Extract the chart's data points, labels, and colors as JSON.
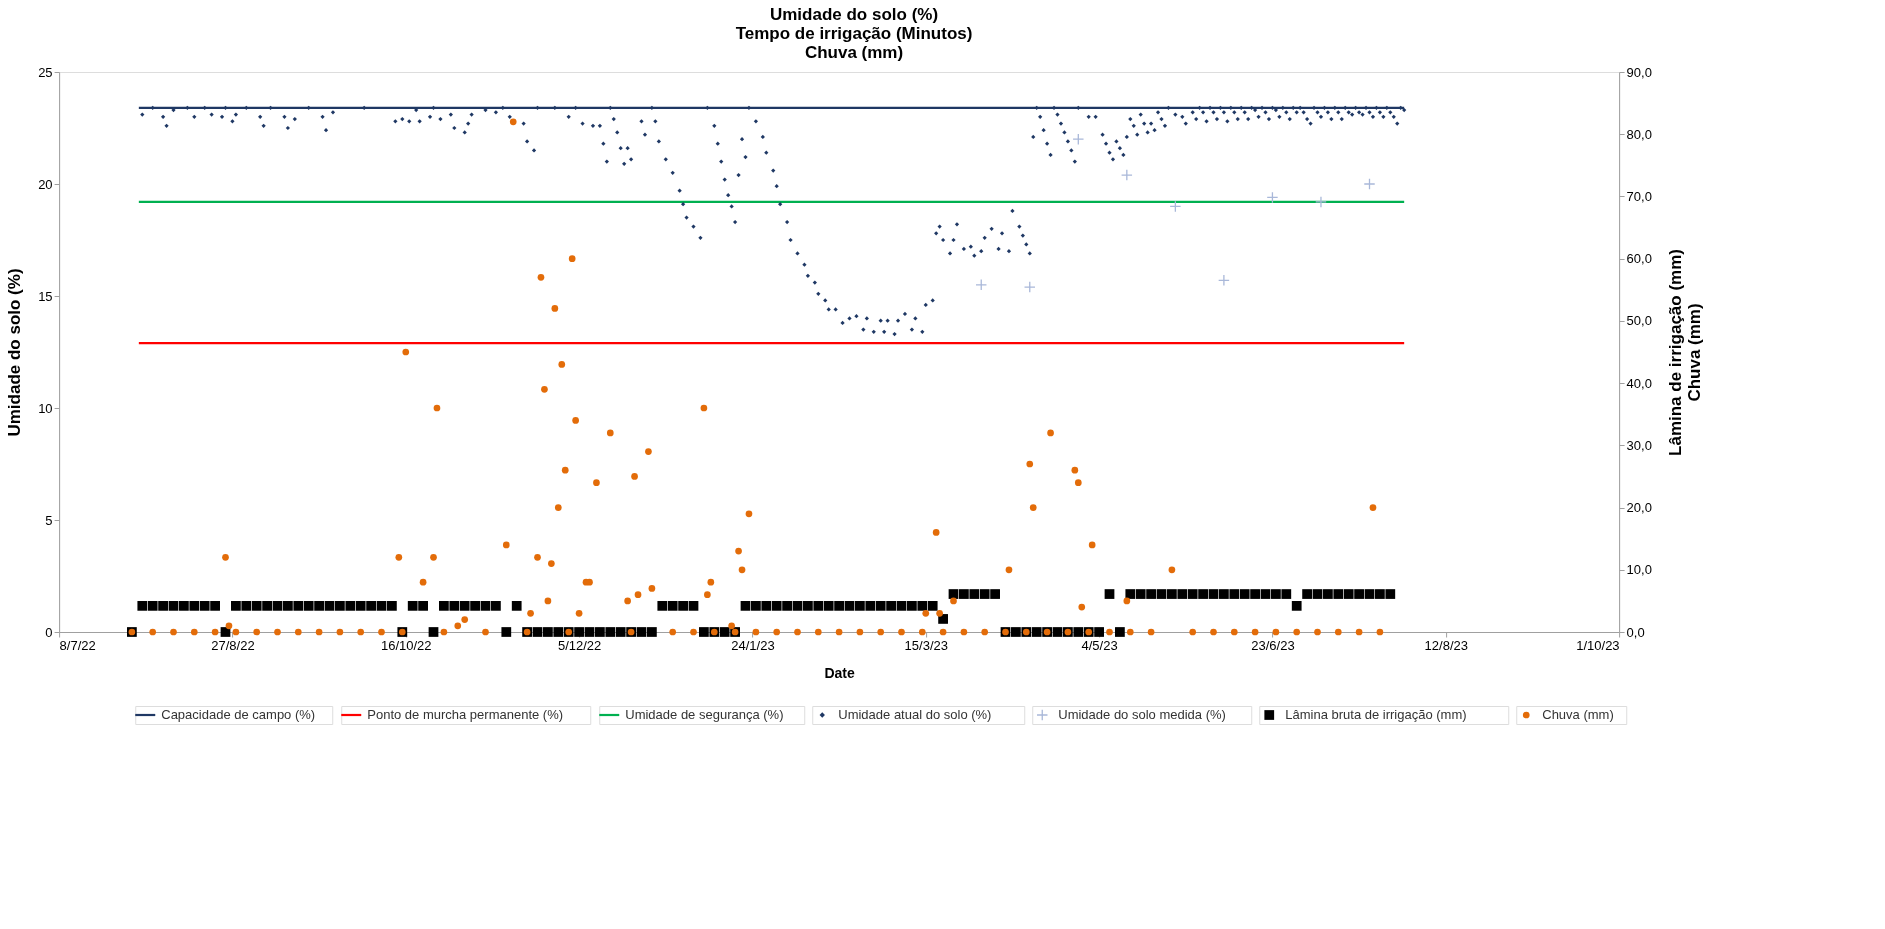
{
  "chart_data": {
    "type": "scatter",
    "title": "Umidade do solo (%)\nTempo de irrigação (Minutos)\nChuva (mm)",
    "xlabel": "Date",
    "ylabel": "Umidade do solo (%)",
    "y2label": "Lâmina de irrigação (mm)\nChuva (mm)",
    "xlim": [
      "2022-07-08",
      "2023-10-01"
    ],
    "xticks": [
      {
        "value": "2022-07-08",
        "label": "8/7/22"
      },
      {
        "value": "2022-08-27",
        "label": "27/8/22"
      },
      {
        "value": "2022-10-16",
        "label": "16/10/22"
      },
      {
        "value": "2022-12-05",
        "label": "5/12/22"
      },
      {
        "value": "2023-01-24",
        "label": "24/1/23"
      },
      {
        "value": "2023-03-15",
        "label": "15/3/23"
      },
      {
        "value": "2023-05-04",
        "label": "4/5/23"
      },
      {
        "value": "2023-06-23",
        "label": "23/6/23"
      },
      {
        "value": "2023-08-12",
        "label": "12/8/23"
      },
      {
        "value": "2023-10-01",
        "label": "1/10/23"
      }
    ],
    "ylim": [
      0,
      25
    ],
    "yticks": [
      0,
      5,
      10,
      15,
      20,
      25
    ],
    "y2lim": [
      0,
      90
    ],
    "y2ticks": [
      {
        "value": 0,
        "label": "0,0"
      },
      {
        "value": 10,
        "label": "10,0"
      },
      {
        "value": 20,
        "label": "20,0"
      },
      {
        "value": 30,
        "label": "30,0"
      },
      {
        "value": 40,
        "label": "40,0"
      },
      {
        "value": 50,
        "label": "50,0"
      },
      {
        "value": 60,
        "label": "60,0"
      },
      {
        "value": 70,
        "label": "70,0"
      },
      {
        "value": 80,
        "label": "80,0"
      },
      {
        "value": 90,
        "label": "90,0"
      }
    ],
    "legend": "bottom",
    "series": [
      {
        "name": "Capacidade de campo (%)",
        "type": "line",
        "marker": "none",
        "color": "#1f3864",
        "x": [
          "2022-07-31",
          "2023-07-31"
        ],
        "values": [
          23.4,
          23.4
        ]
      },
      {
        "name": "Ponto de murcha permanente (%)",
        "type": "line",
        "marker": "none",
        "color": "#ff0000",
        "x": [
          "2022-07-31",
          "2023-07-31"
        ],
        "values": [
          12.9,
          12.9
        ]
      },
      {
        "name": "Umidade de segurança (%)",
        "type": "line",
        "marker": "none",
        "color": "#00b050",
        "x": [
          "2022-07-31",
          "2023-07-31"
        ],
        "values": [
          19.2,
          19.2
        ]
      },
      {
        "name": "Umidade atual do solo (%)",
        "marker": "diamond",
        "color": "#1f3864",
        "x": [
          "2022-08-01",
          "2022-08-04",
          "2022-08-07",
          "2022-08-08",
          "2022-08-10",
          "2022-08-14",
          "2022-08-16",
          "2022-08-19",
          "2022-08-21",
          "2022-08-24",
          "2022-08-25",
          "2022-08-27",
          "2022-08-28",
          "2022-08-31",
          "2022-09-04",
          "2022-09-05",
          "2022-09-07",
          "2022-09-11",
          "2022-09-12",
          "2022-09-14",
          "2022-09-18",
          "2022-09-22",
          "2022-09-23",
          "2022-09-25",
          "2022-10-04",
          "2022-10-13",
          "2022-10-15",
          "2022-10-17",
          "2022-10-19",
          "2022-10-20",
          "2022-10-23",
          "2022-10-24",
          "2022-10-26",
          "2022-10-29",
          "2022-10-30",
          "2022-11-02",
          "2022-11-03",
          "2022-11-04",
          "2022-11-08",
          "2022-11-11",
          "2022-11-13",
          "2022-11-15",
          "2022-11-19",
          "2022-11-20",
          "2022-11-22",
          "2022-11-23",
          "2022-11-28",
          "2022-12-02",
          "2022-12-04",
          "2022-12-06",
          "2022-12-09",
          "2022-12-11",
          "2022-12-12",
          "2022-12-13",
          "2022-12-14",
          "2022-12-15",
          "2022-12-16",
          "2022-12-17",
          "2022-12-18",
          "2022-12-19",
          "2022-12-20",
          "2022-12-23",
          "2022-12-24",
          "2022-12-26",
          "2022-12-27",
          "2022-12-28",
          "2022-12-30",
          "2023-01-01",
          "2023-01-03",
          "2023-01-04",
          "2023-01-05",
          "2023-01-07",
          "2023-01-09",
          "2023-01-11",
          "2023-01-13",
          "2023-01-14",
          "2023-01-15",
          "2023-01-16",
          "2023-01-17",
          "2023-01-18",
          "2023-01-19",
          "2023-01-20",
          "2023-01-21",
          "2023-01-22",
          "2023-01-23",
          "2023-01-25",
          "2023-01-27",
          "2023-01-28",
          "2023-01-30",
          "2023-01-31",
          "2023-02-01",
          "2023-02-03",
          "2023-02-04",
          "2023-02-06",
          "2023-02-08",
          "2023-02-09",
          "2023-02-11",
          "2023-02-12",
          "2023-02-14",
          "2023-02-15",
          "2023-02-17",
          "2023-02-19",
          "2023-02-21",
          "2023-02-23",
          "2023-02-25",
          "2023-02-26",
          "2023-02-28",
          "2023-03-02",
          "2023-03-03",
          "2023-03-04",
          "2023-03-06",
          "2023-03-07",
          "2023-03-09",
          "2023-03-11",
          "2023-03-12",
          "2023-03-14",
          "2023-03-15",
          "2023-03-17",
          "2023-03-18",
          "2023-03-19",
          "2023-03-20",
          "2023-03-22",
          "2023-03-23",
          "2023-03-24",
          "2023-03-26",
          "2023-03-28",
          "2023-03-29",
          "2023-03-31",
          "2023-04-01",
          "2023-04-03",
          "2023-04-05",
          "2023-04-06",
          "2023-04-08",
          "2023-04-09",
          "2023-04-11",
          "2023-04-12",
          "2023-04-13",
          "2023-04-14",
          "2023-04-15",
          "2023-04-16",
          "2023-04-17",
          "2023-04-18",
          "2023-04-19",
          "2023-04-20",
          "2023-04-21",
          "2023-04-22",
          "2023-04-23",
          "2023-04-24",
          "2023-04-25",
          "2023-04-26",
          "2023-04-27",
          "2023-04-28",
          "2023-05-01",
          "2023-05-03",
          "2023-05-05",
          "2023-05-06",
          "2023-05-07",
          "2023-05-08",
          "2023-05-09",
          "2023-05-10",
          "2023-05-11",
          "2023-05-12",
          "2023-05-13",
          "2023-05-14",
          "2023-05-15",
          "2023-05-16",
          "2023-05-17",
          "2023-05-18",
          "2023-05-19",
          "2023-05-20",
          "2023-05-21",
          "2023-05-22",
          "2023-05-23",
          "2023-05-24",
          "2023-05-26",
          "2023-05-28",
          "2023-05-29",
          "2023-05-31",
          "2023-06-01",
          "2023-06-02",
          "2023-06-03",
          "2023-06-04",
          "2023-06-05",
          "2023-06-06",
          "2023-06-07",
          "2023-06-08",
          "2023-06-09",
          "2023-06-10",
          "2023-06-11",
          "2023-06-12",
          "2023-06-13",
          "2023-06-14",
          "2023-06-15",
          "2023-06-16",
          "2023-06-17",
          "2023-06-18",
          "2023-06-19",
          "2023-06-20",
          "2023-06-21",
          "2023-06-22",
          "2023-06-23",
          "2023-06-24",
          "2023-06-25",
          "2023-06-26",
          "2023-06-27",
          "2023-06-28",
          "2023-06-29",
          "2023-06-30",
          "2023-07-01",
          "2023-07-02",
          "2023-07-03",
          "2023-07-04",
          "2023-07-05",
          "2023-07-06",
          "2023-07-07",
          "2023-07-08",
          "2023-07-09",
          "2023-07-10",
          "2023-07-11",
          "2023-07-12",
          "2023-07-13",
          "2023-07-14",
          "2023-07-15",
          "2023-07-16",
          "2023-07-17",
          "2023-07-18",
          "2023-07-19",
          "2023-07-20",
          "2023-07-21",
          "2023-07-22",
          "2023-07-23",
          "2023-07-24",
          "2023-07-25",
          "2023-07-26",
          "2023-07-27",
          "2023-07-28",
          "2023-07-29",
          "2023-07-30",
          "2023-07-31"
        ],
        "values": [
          23.1,
          23.4,
          23.0,
          22.6,
          23.3,
          23.4,
          23.0,
          23.4,
          23.1,
          23.0,
          23.4,
          22.8,
          23.1,
          23.4,
          23.0,
          22.6,
          23.4,
          23.0,
          22.5,
          22.9,
          23.4,
          23.0,
          22.4,
          23.2,
          23.4,
          22.8,
          22.9,
          22.8,
          23.3,
          22.8,
          23.0,
          23.4,
          22.9,
          23.1,
          22.5,
          22.3,
          22.7,
          23.1,
          23.3,
          23.2,
          23.4,
          23.0,
          22.7,
          21.9,
          21.5,
          23.4,
          23.4,
          23.0,
          23.4,
          22.7,
          22.6,
          22.6,
          21.8,
          21.0,
          23.4,
          22.9,
          22.3,
          21.6,
          20.9,
          21.6,
          21.1,
          22.8,
          22.2,
          23.4,
          22.8,
          21.9,
          21.1,
          20.5,
          19.7,
          19.1,
          18.5,
          18.1,
          17.6,
          23.4,
          22.6,
          21.8,
          21.0,
          20.2,
          19.5,
          19.0,
          18.3,
          20.4,
          22.0,
          21.2,
          23.4,
          22.8,
          22.1,
          21.4,
          20.6,
          19.9,
          19.1,
          18.3,
          17.5,
          16.9,
          16.4,
          15.9,
          15.6,
          15.1,
          14.8,
          14.4,
          14.4,
          13.8,
          14.0,
          14.1,
          13.5,
          14.0,
          13.4,
          13.9,
          13.4,
          13.9,
          13.3,
          13.9,
          14.2,
          13.5,
          14.0,
          13.4,
          14.6,
          14.8,
          17.8,
          18.1,
          17.5,
          16.9,
          17.5,
          18.2,
          17.1,
          17.2,
          16.8,
          17.0,
          17.6,
          18.0,
          17.1,
          17.8,
          17.0,
          18.8,
          18.1,
          17.7,
          17.3,
          16.9,
          22.1,
          23.4,
          23.0,
          22.4,
          21.8,
          21.3,
          23.4,
          23.1,
          22.7,
          22.3,
          21.9,
          21.5,
          21.0,
          23.4,
          23.0,
          23.0,
          22.2,
          21.8,
          21.4,
          21.1,
          21.9,
          21.6,
          21.3,
          22.1,
          22.9,
          22.6,
          22.2,
          23.1,
          22.7,
          22.3,
          22.7,
          22.4,
          23.2,
          22.9,
          22.6,
          23.4,
          23.1,
          23.0,
          22.7,
          23.2,
          22.9,
          23.4,
          23.2,
          22.8,
          23.4,
          23.2,
          22.9,
          23.4,
          23.2,
          22.8,
          23.4,
          23.2,
          22.9,
          23.4,
          23.2,
          22.9,
          23.4,
          23.3,
          23.0,
          23.4,
          23.2,
          22.9,
          23.4,
          23.3,
          23.0,
          23.4,
          23.2,
          22.9,
          23.4,
          23.2,
          23.4,
          23.2,
          22.9,
          22.7,
          23.4,
          23.2,
          23.0,
          23.4,
          23.2,
          22.9,
          23.4,
          23.2,
          22.9,
          23.4,
          23.2,
          23.1,
          23.4,
          23.2,
          23.1,
          23.4,
          23.2,
          23.0,
          23.4,
          23.2,
          23.0,
          23.4,
          23.2,
          23.0,
          22.7,
          23.4,
          23.3
        ]
      },
      {
        "name": "Umidade do solo medida (%)",
        "marker": "cross",
        "color": "#a9b8d9",
        "x": [
          "2023-03-31",
          "2023-04-14",
          "2023-04-28",
          "2023-05-12",
          "2023-05-26",
          "2023-06-09",
          "2023-06-23",
          "2023-07-07",
          "2023-07-21"
        ],
        "values": [
          15.5,
          15.4,
          22.0,
          20.4,
          19.0,
          15.7,
          19.4,
          19.2,
          20.0
        ]
      },
      {
        "name": "Lâmina bruta de irrigação (mm)",
        "marker": "square",
        "color": "#000000",
        "axis": "y2",
        "x": [
          "2022-07-29",
          "2022-08-01",
          "2022-08-04",
          "2022-08-07",
          "2022-08-10",
          "2022-08-13",
          "2022-08-16",
          "2022-08-19",
          "2022-08-22",
          "2022-08-25",
          "2022-08-28",
          "2022-08-31",
          "2022-09-03",
          "2022-09-06",
          "2022-09-09",
          "2022-09-12",
          "2022-09-15",
          "2022-09-18",
          "2022-09-21",
          "2022-09-24",
          "2022-09-27",
          "2022-09-30",
          "2022-10-03",
          "2022-10-06",
          "2022-10-09",
          "2022-10-12",
          "2022-10-15",
          "2022-10-18",
          "2022-10-21",
          "2022-10-24",
          "2022-10-27",
          "2022-10-30",
          "2022-11-02",
          "2022-11-05",
          "2022-11-08",
          "2022-11-11",
          "2022-11-14",
          "2022-11-17",
          "2022-11-20",
          "2022-11-23",
          "2022-11-26",
          "2022-11-29",
          "2022-12-02",
          "2022-12-05",
          "2022-12-08",
          "2022-12-11",
          "2022-12-14",
          "2022-12-17",
          "2022-12-20",
          "2022-12-23",
          "2022-12-26",
          "2022-12-29",
          "2023-01-01",
          "2023-01-04",
          "2023-01-07",
          "2023-01-10",
          "2023-01-13",
          "2023-01-16",
          "2023-01-19",
          "2023-01-22",
          "2023-01-25",
          "2023-01-28",
          "2023-01-31",
          "2023-02-03",
          "2023-02-06",
          "2023-02-09",
          "2023-02-12",
          "2023-02-15",
          "2023-02-18",
          "2023-02-21",
          "2023-02-24",
          "2023-02-27",
          "2023-03-02",
          "2023-03-05",
          "2023-03-08",
          "2023-03-11",
          "2023-03-14",
          "2023-03-17",
          "2023-03-20",
          "2023-03-23",
          "2023-03-26",
          "2023-03-29",
          "2023-04-01",
          "2023-04-04",
          "2023-04-07",
          "2023-04-10",
          "2023-04-13",
          "2023-04-16",
          "2023-04-19",
          "2023-04-22",
          "2023-04-25",
          "2023-04-28",
          "2023-05-01",
          "2023-05-04",
          "2023-05-07",
          "2023-05-10",
          "2023-05-13",
          "2023-05-16",
          "2023-05-19",
          "2023-05-22",
          "2023-05-25",
          "2023-05-28",
          "2023-05-31",
          "2023-06-03",
          "2023-06-06",
          "2023-06-09",
          "2023-06-12",
          "2023-06-15",
          "2023-06-18",
          "2023-06-21",
          "2023-06-24",
          "2023-06-27",
          "2023-06-30",
          "2023-07-03",
          "2023-07-06",
          "2023-07-09",
          "2023-07-12",
          "2023-07-15",
          "2023-07-18",
          "2023-07-21",
          "2023-07-24",
          "2023-07-27"
        ],
        "values": [
          0,
          4.2,
          4.2,
          4.2,
          4.2,
          4.2,
          4.2,
          4.2,
          4.2,
          0,
          4.2,
          4.2,
          4.2,
          4.2,
          4.2,
          4.2,
          4.2,
          4.2,
          4.2,
          4.2,
          4.2,
          4.2,
          4.2,
          4.2,
          4.2,
          4.2,
          0,
          4.2,
          4.2,
          0,
          4.2,
          4.2,
          4.2,
          4.2,
          4.2,
          4.2,
          0,
          4.2,
          0,
          0,
          0,
          0,
          0,
          0,
          0,
          0,
          0,
          0,
          0,
          0,
          0,
          4.2,
          4.2,
          4.2,
          4.2,
          0,
          0,
          0,
          0,
          4.2,
          4.2,
          4.2,
          4.2,
          4.2,
          4.2,
          4.2,
          4.2,
          4.2,
          4.2,
          4.2,
          4.2,
          4.2,
          4.2,
          4.2,
          4.2,
          4.2,
          4.2,
          4.2,
          2.1,
          6.1,
          6.1,
          6.1,
          6.1,
          6.1,
          0,
          0,
          0,
          0,
          0,
          0,
          0,
          0,
          0,
          0,
          6.1,
          0,
          6.1,
          6.1,
          6.1,
          6.1,
          6.1,
          6.1,
          6.1,
          6.1,
          6.1,
          6.1,
          6.1,
          6.1,
          6.1,
          6.1,
          6.1,
          6.1,
          4.2,
          6.1,
          6.1,
          6.1,
          6.1,
          6.1,
          6.1,
          6.1,
          6.1,
          6.1
        ]
      },
      {
        "name": "Chuva  (mm)",
        "marker": "circle",
        "color": "#e36c09",
        "axis": "y2",
        "x": [
          "2022-07-29",
          "2022-08-04",
          "2022-08-10",
          "2022-08-16",
          "2022-08-22",
          "2022-08-28",
          "2022-09-03",
          "2022-09-09",
          "2022-09-15",
          "2022-09-21",
          "2022-09-27",
          "2022-10-03",
          "2022-10-09",
          "2022-10-15",
          "2022-10-27",
          "2022-11-08",
          "2022-11-20",
          "2022-12-02",
          "2022-12-20",
          "2023-01-01",
          "2023-01-07",
          "2023-01-13",
          "2023-01-19",
          "2023-01-25",
          "2023-01-31",
          "2023-02-06",
          "2023-02-12",
          "2023-02-18",
          "2023-02-24",
          "2023-03-02",
          "2023-03-08",
          "2023-03-14",
          "2023-03-20",
          "2023-03-26",
          "2023-04-01",
          "2023-04-07",
          "2023-04-13",
          "2023-04-19",
          "2023-04-25",
          "2023-05-01",
          "2023-05-07",
          "2023-05-13",
          "2023-05-19",
          "2023-05-31",
          "2023-06-06",
          "2023-06-12",
          "2023-06-18",
          "2023-06-24",
          "2023-06-30",
          "2023-07-06",
          "2023-07-12",
          "2023-07-18",
          "2023-07-24",
          "2022-08-25",
          "2022-08-26",
          "2022-10-14",
          "2022-10-16",
          "2022-10-21",
          "2022-10-24",
          "2022-10-25",
          "2022-10-31",
          "2022-11-02",
          "2022-11-14",
          "2022-11-16",
          "2022-11-21",
          "2022-11-23",
          "2022-11-24",
          "2022-11-25",
          "2022-11-26",
          "2022-11-27",
          "2022-11-28",
          "2022-11-29",
          "2022-11-30",
          "2022-12-01",
          "2022-12-03",
          "2022-12-04",
          "2022-12-05",
          "2022-12-07",
          "2022-12-08",
          "2022-12-10",
          "2022-12-14",
          "2022-12-19",
          "2022-12-21",
          "2022-12-22",
          "2022-12-25",
          "2022-12-26",
          "2023-01-10",
          "2023-01-11",
          "2023-01-12",
          "2023-01-18",
          "2023-01-20",
          "2023-01-21",
          "2023-01-23",
          "2023-03-15",
          "2023-03-18",
          "2023-03-19",
          "2023-03-23",
          "2023-04-08",
          "2023-04-14",
          "2023-04-15",
          "2023-04-20",
          "2023-04-27",
          "2023-04-28",
          "2023-04-29",
          "2023-05-02",
          "2023-05-12",
          "2023-05-25",
          "2023-07-22"
        ],
        "values": [
          0,
          0,
          0,
          0,
          0,
          0,
          0,
          0,
          0,
          0,
          0,
          0,
          0,
          0,
          0,
          0,
          0,
          0,
          0,
          0,
          0,
          0,
          0,
          0,
          0,
          0,
          0,
          0,
          0,
          0,
          0,
          0,
          0,
          0,
          0,
          0,
          0,
          0,
          0,
          0,
          0,
          0,
          0,
          0,
          0,
          0,
          0,
          0,
          0,
          0,
          0,
          0,
          0,
          12,
          1,
          12,
          45,
          8,
          12,
          36,
          1,
          2,
          14,
          82,
          3,
          12,
          57,
          39,
          5,
          11,
          52,
          20,
          43,
          26,
          60,
          34,
          3,
          8,
          8,
          24,
          32,
          5,
          25,
          6,
          29,
          7,
          36,
          6,
          8,
          1,
          13,
          10,
          19,
          3,
          16,
          3,
          5,
          10,
          27,
          20,
          32,
          26,
          24,
          4,
          14,
          5,
          10,
          20
        ]
      }
    ]
  }
}
